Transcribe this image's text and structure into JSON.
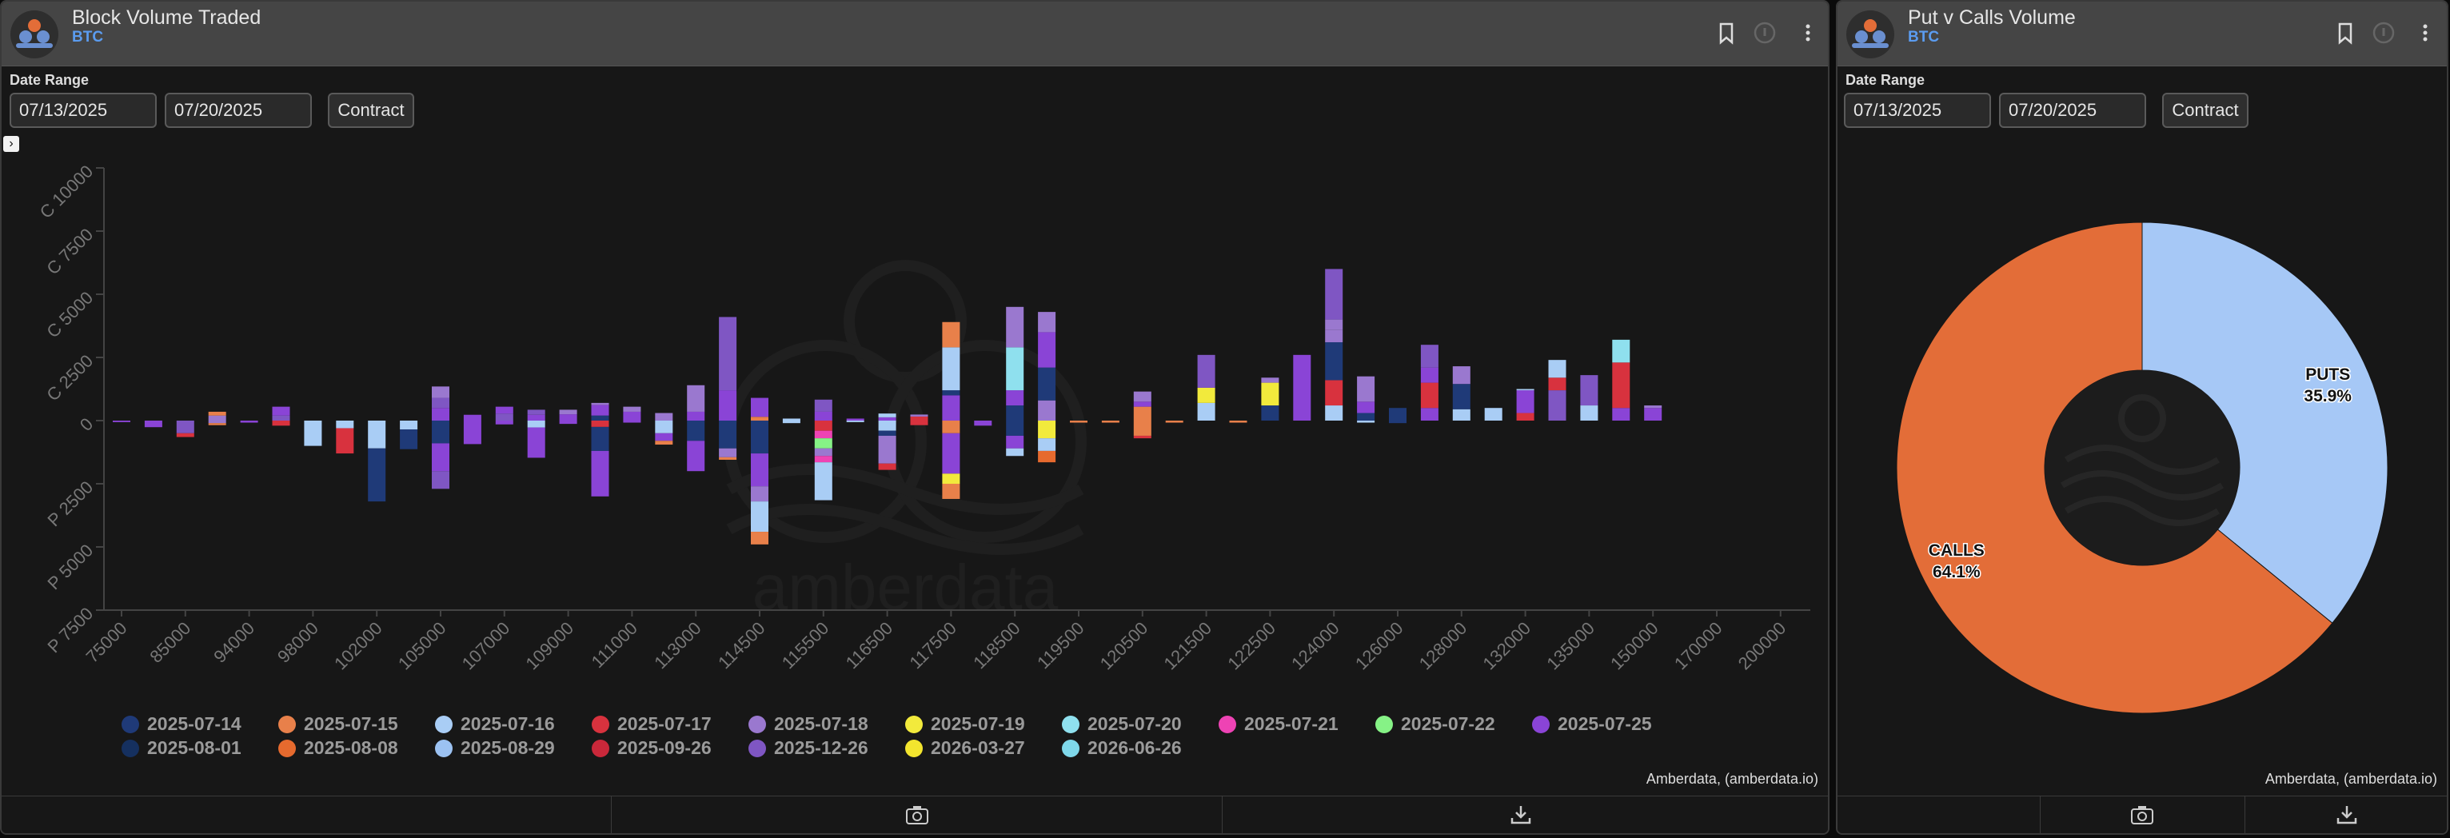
{
  "left_panel": {
    "title": "Block Volume Traded",
    "subtitle": "BTC",
    "date_range_label": "Date Range",
    "start_date": "07/13/2025",
    "end_date": "07/20/2025",
    "contract_label": "Contract",
    "credit": "Amberdata, (amberdata.io)",
    "watermark": "amberdata"
  },
  "right_panel": {
    "title": "Put v Calls Volume",
    "subtitle": "BTC",
    "date_range_label": "Date Range",
    "start_date": "07/13/2025",
    "end_date": "07/20/2025",
    "contract_label": "Contract",
    "credit": "Amberdata, (amberdata.io)"
  },
  "chart_data": [
    {
      "type": "bar",
      "stacked": true,
      "orientation": "vertical, calls above zero, puts below zero",
      "y_ticks": [
        "C 10000",
        "C 7500",
        "C 5000",
        "C 2500",
        "0",
        "P 2500",
        "P 5000",
        "P 7500"
      ],
      "ylim": [
        -7500,
        10000
      ],
      "categories": [
        "75000",
        "85000",
        "94000",
        "98000",
        "102000",
        "105000",
        "107000",
        "109000",
        "111000",
        "113000",
        "114500",
        "115500",
        "116500",
        "117500",
        "118500",
        "119500",
        "120500",
        "121500",
        "122500",
        "124000",
        "126000",
        "128000",
        "132000",
        "135000",
        "150000",
        "170000",
        "200000"
      ],
      "legend": [
        {
          "label": "2025-07-14",
          "color": "#1f3a78"
        },
        {
          "label": "2025-07-15",
          "color": "#e8804a"
        },
        {
          "label": "2025-07-16",
          "color": "#a9cdf5"
        },
        {
          "label": "2025-07-17",
          "color": "#d8323e"
        },
        {
          "label": "2025-07-18",
          "color": "#9a78cf"
        },
        {
          "label": "2025-07-19",
          "color": "#f2ea3c"
        },
        {
          "label": "2025-07-20",
          "color": "#8fe0ee"
        },
        {
          "label": "2025-07-21",
          "color": "#ee43b4"
        },
        {
          "label": "2025-07-22",
          "color": "#86f286"
        },
        {
          "label": "2025-07-25",
          "color": "#8a44d6"
        },
        {
          "label": "2025-08-01",
          "color": "#15305f"
        },
        {
          "label": "2025-08-08",
          "color": "#e66a2e"
        },
        {
          "label": "2025-08-29",
          "color": "#9cc2f2"
        },
        {
          "label": "2025-09-26",
          "color": "#c9283a"
        },
        {
          "label": "2025-12-26",
          "color": "#7f56c3"
        },
        {
          "label": "2026-03-27",
          "color": "#f3e52e"
        },
        {
          "label": "2026-06-26",
          "color": "#7fd8ea"
        }
      ],
      "bars": [
        {
          "cat": 0,
          "call": [],
          "put": [
            [
              9,
              60
            ]
          ]
        },
        {
          "cat": 0.5,
          "call": [],
          "put": [
            [
              9,
              260
            ]
          ]
        },
        {
          "cat": 1,
          "call": [],
          "put": [
            [
              14,
              500
            ],
            [
              3,
              150
            ]
          ]
        },
        {
          "cat": 1.5,
          "call": [
            [
              4,
              200
            ],
            [
              1,
              150
            ]
          ],
          "put": [
            [
              4,
              100
            ],
            [
              1,
              80
            ]
          ]
        },
        {
          "cat": 2,
          "call": [],
          "put": [
            [
              9,
              80
            ]
          ]
        },
        {
          "cat": 2.5,
          "call": [
            [
              14,
              200
            ],
            [
              9,
              350
            ]
          ],
          "put": [
            [
              3,
              200
            ]
          ]
        },
        {
          "cat": 3,
          "call": [],
          "put": [
            [
              2,
              1000
            ]
          ]
        },
        {
          "cat": 3.5,
          "call": [],
          "put": [
            [
              2,
              300
            ],
            [
              3,
              1000
            ]
          ]
        },
        {
          "cat": 4,
          "call": [],
          "put": [
            [
              2,
              1100
            ],
            [
              0,
              2100
            ]
          ]
        },
        {
          "cat": 4.5,
          "call": [],
          "put": [
            [
              2,
              350
            ],
            [
              0,
              780
            ]
          ]
        },
        {
          "cat": 5,
          "call": [
            [
              9,
              500
            ],
            [
              14,
              400
            ],
            [
              4,
              450
            ]
          ],
          "put": [
            [
              0,
              900
            ],
            [
              9,
              1100
            ],
            [
              14,
              700
            ]
          ]
        },
        {
          "cat": 5.5,
          "call": [
            [
              9,
              230
            ]
          ],
          "put": [
            [
              9,
              930
            ]
          ]
        },
        {
          "cat": 6,
          "call": [
            [
              14,
              280
            ],
            [
              9,
              270
            ]
          ],
          "put": [
            [
              9,
              150
            ]
          ]
        },
        {
          "cat": 6.5,
          "call": [
            [
              9,
              230
            ],
            [
              14,
              200
            ]
          ],
          "put": [
            [
              2,
              270
            ],
            [
              9,
              1200
            ]
          ]
        },
        {
          "cat": 7,
          "call": [
            [
              9,
              250
            ],
            [
              4,
              180
            ]
          ],
          "put": [
            [
              9,
              130
            ]
          ]
        },
        {
          "cat": 7.5,
          "call": [
            [
              0,
              200
            ],
            [
              9,
              420
            ],
            [
              4,
              80
            ]
          ],
          "put": [
            [
              3,
              250
            ],
            [
              0,
              950
            ],
            [
              9,
              1800
            ]
          ]
        },
        {
          "cat": 8,
          "call": [
            [
              9,
              350
            ],
            [
              4,
              200
            ]
          ],
          "put": [
            [
              9,
              80
            ]
          ]
        },
        {
          "cat": 8.5,
          "call": [
            [
              4,
              300
            ]
          ],
          "put": [
            [
              2,
              500
            ],
            [
              9,
              300
            ],
            [
              1,
              150
            ]
          ]
        },
        {
          "cat": 9,
          "call": [
            [
              9,
              350
            ],
            [
              4,
              1050
            ]
          ],
          "put": [
            [
              0,
              800
            ],
            [
              9,
              1200
            ]
          ]
        },
        {
          "cat": 9.5,
          "call": [
            [
              9,
              1200
            ],
            [
              14,
              2900
            ]
          ],
          "put": [
            [
              0,
              1100
            ],
            [
              4,
              350
            ],
            [
              1,
              100
            ]
          ]
        },
        {
          "cat": 10,
          "call": [
            [
              1,
              150
            ],
            [
              9,
              750
            ]
          ],
          "put": [
            [
              0,
              1300
            ],
            [
              9,
              1300
            ],
            [
              4,
              600
            ],
            [
              2,
              1200
            ],
            [
              1,
              500
            ]
          ]
        },
        {
          "cat": 10.5,
          "call": [
            [
              2,
              80
            ]
          ],
          "put": [
            [
              2,
              100
            ]
          ]
        },
        {
          "cat": 11,
          "call": [
            [
              9,
              350
            ],
            [
              14,
              480
            ]
          ],
          "put": [
            [
              3,
              400
            ],
            [
              7,
              300
            ],
            [
              8,
              400
            ],
            [
              4,
              300
            ],
            [
              7,
              250
            ],
            [
              2,
              1500
            ]
          ]
        },
        {
          "cat": 11.5,
          "call": [
            [
              9,
              80
            ]
          ],
          "put": [
            [
              2,
              60
            ]
          ]
        },
        {
          "cat": 12,
          "call": [
            [
              9,
              130
            ],
            [
              2,
              150
            ]
          ],
          "put": [
            [
              2,
              400
            ],
            [
              0,
              200
            ],
            [
              4,
              1100
            ],
            [
              3,
              250
            ]
          ]
        },
        {
          "cat": 12.5,
          "call": [
            [
              3,
              160
            ],
            [
              4,
              80
            ]
          ],
          "put": [
            [
              3,
              180
            ]
          ]
        },
        {
          "cat": 13,
          "call": [
            [
              9,
              1000
            ],
            [
              0,
              200
            ],
            [
              2,
              1700
            ],
            [
              1,
              1000
            ]
          ],
          "put": [
            [
              1,
              500
            ],
            [
              9,
              1600
            ],
            [
              5,
              400
            ],
            [
              1,
              600
            ]
          ]
        },
        {
          "cat": 13.5,
          "call": [],
          "put": [
            [
              9,
              200
            ]
          ]
        },
        {
          "cat": 14,
          "call": [
            [
              0,
              600
            ],
            [
              9,
              600
            ],
            [
              6,
              1700
            ],
            [
              4,
              1600
            ]
          ],
          "put": [
            [
              0,
              600
            ],
            [
              9,
              500
            ],
            [
              2,
              300
            ]
          ]
        },
        {
          "cat": 14.5,
          "call": [
            [
              4,
              800
            ],
            [
              0,
              1300
            ],
            [
              9,
              1400
            ],
            [
              4,
              800
            ]
          ],
          "put": [
            [
              5,
              700
            ],
            [
              2,
              500
            ],
            [
              11,
              450
            ]
          ]
        },
        {
          "cat": 15,
          "call": [],
          "put": [
            [
              1,
              80
            ]
          ]
        },
        {
          "cat": 15.5,
          "call": [],
          "put": [
            [
              1,
              80
            ]
          ]
        },
        {
          "cat": 16,
          "call": [
            [
              1,
              550
            ],
            [
              9,
              200
            ],
            [
              4,
              400
            ]
          ],
          "put": [
            [
              1,
              600
            ],
            [
              3,
              100
            ]
          ]
        },
        {
          "cat": 16.5,
          "call": [],
          "put": [
            [
              1,
              80
            ]
          ]
        },
        {
          "cat": 17,
          "call": [
            [
              2,
              700
            ],
            [
              5,
              600
            ],
            [
              14,
              1300
            ]
          ],
          "put": []
        },
        {
          "cat": 17.5,
          "call": [],
          "put": [
            [
              1,
              80
            ]
          ]
        },
        {
          "cat": 18,
          "call": [
            [
              0,
              600
            ],
            [
              5,
              900
            ],
            [
              4,
              200
            ]
          ],
          "put": []
        },
        {
          "cat": 18.5,
          "call": [
            [
              9,
              2600
            ]
          ],
          "put": []
        },
        {
          "cat": 19,
          "call": [
            [
              2,
              600
            ],
            [
              3,
              1000
            ],
            [
              0,
              1500
            ],
            [
              4,
              500
            ],
            [
              4,
              400
            ],
            [
              14,
              2000
            ]
          ],
          "put": []
        },
        {
          "cat": 19.5,
          "call": [
            [
              0,
              300
            ],
            [
              9,
              450
            ],
            [
              4,
              1000
            ]
          ],
          "put": [
            [
              2,
              80
            ]
          ]
        },
        {
          "cat": 20,
          "call": [
            [
              0,
              500
            ]
          ],
          "put": [
            [
              0,
              100
            ]
          ]
        },
        {
          "cat": 20.5,
          "call": [
            [
              9,
              500
            ],
            [
              3,
              1000
            ],
            [
              9,
              600
            ],
            [
              14,
              900
            ]
          ],
          "put": []
        },
        {
          "cat": 21,
          "call": [
            [
              2,
              450
            ],
            [
              0,
              1000
            ],
            [
              4,
              700
            ]
          ],
          "put": []
        },
        {
          "cat": 21.5,
          "call": [
            [
              2,
              500
            ]
          ],
          "put": []
        },
        {
          "cat": 22,
          "call": [
            [
              3,
              300
            ],
            [
              9,
              900
            ],
            [
              2,
              50
            ]
          ],
          "put": []
        },
        {
          "cat": 22.5,
          "call": [
            [
              14,
              1200
            ],
            [
              3,
              500
            ],
            [
              2,
              700
            ]
          ],
          "put": []
        },
        {
          "cat": 23,
          "call": [
            [
              2,
              600
            ],
            [
              14,
              1200
            ]
          ],
          "put": []
        },
        {
          "cat": 23.5,
          "call": [
            [
              9,
              500
            ],
            [
              3,
              1800
            ],
            [
              6,
              900
            ]
          ],
          "put": []
        },
        {
          "cat": 24,
          "call": [
            [
              9,
              500
            ],
            [
              4,
              100
            ]
          ],
          "put": []
        }
      ]
    },
    {
      "type": "pie",
      "donut": true,
      "slices": [
        {
          "label": "PUTS",
          "value": 35.9,
          "color": "#a6c8f6",
          "display": "35.9%"
        },
        {
          "label": "CALLS",
          "value": 64.1,
          "color": "#e36d38",
          "display": "64.1%"
        }
      ]
    }
  ]
}
